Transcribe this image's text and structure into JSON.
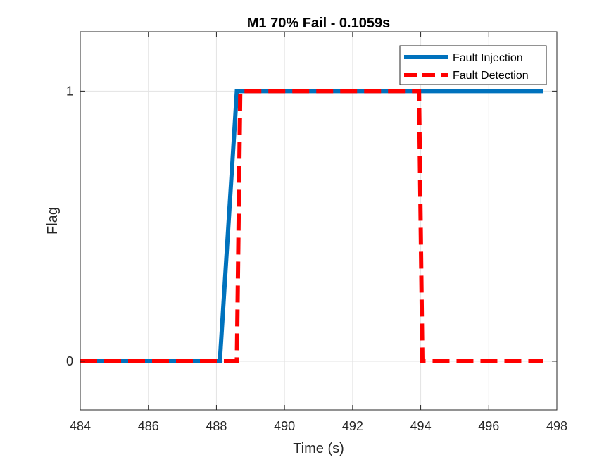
{
  "chart_data": {
    "type": "line",
    "title": "M1 70% Fail - 0.1059s",
    "xlabel": "Time (s)",
    "ylabel": "Flag",
    "xlim": [
      484,
      498
    ],
    "ylim": [
      -0.18,
      1.22
    ],
    "xticks": [
      484,
      486,
      488,
      490,
      492,
      494,
      496,
      498
    ],
    "yticks": [
      0,
      1
    ],
    "grid": true,
    "legend_position": "top-right",
    "series": [
      {
        "name": "Fault Injection",
        "color": "#0072BD",
        "style": "solid",
        "x": [
          484,
          488.1,
          488.6,
          497.6
        ],
        "y": [
          0,
          0,
          1,
          1
        ]
      },
      {
        "name": "Fault Detection",
        "color": "#FF0000",
        "style": "dashed",
        "x": [
          484,
          488.6,
          488.7,
          493.95,
          494.05,
          497.6
        ],
        "y": [
          0,
          0,
          1,
          1,
          0,
          0
        ]
      }
    ]
  }
}
